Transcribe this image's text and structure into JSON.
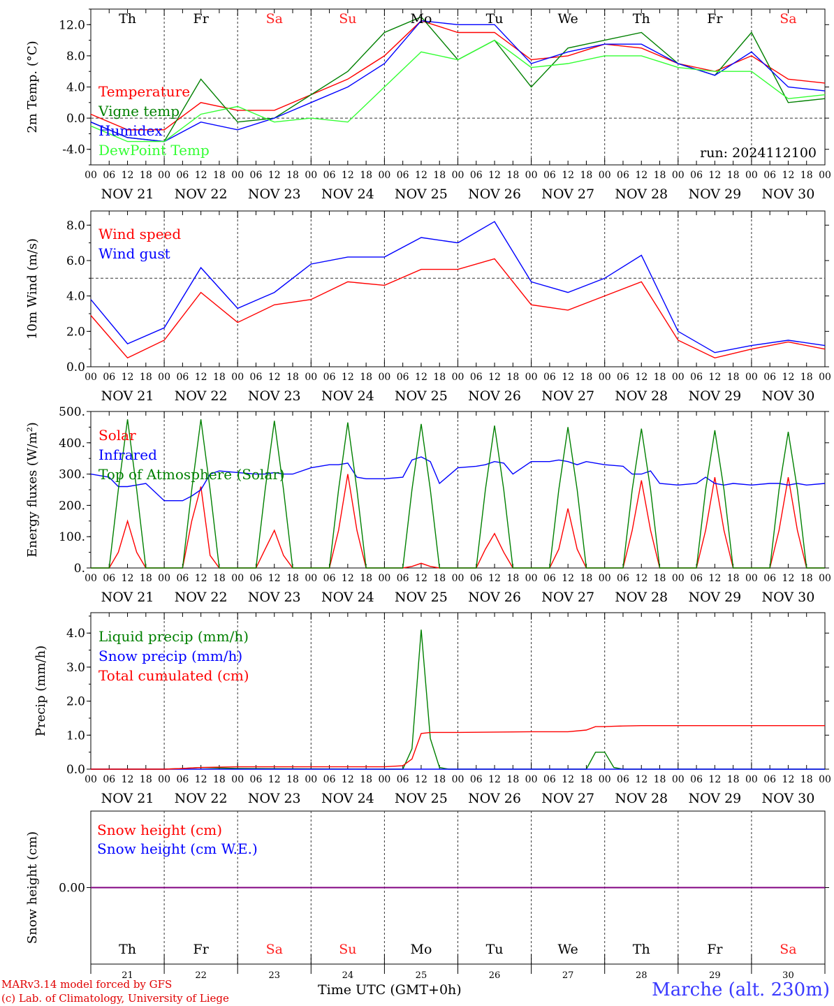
{
  "run_label": "run: 2024112100",
  "hour_ticks": [
    "00",
    "06",
    "12",
    "18"
  ],
  "final_hour_tick": "00",
  "dates": [
    "NOV 21",
    "NOV 22",
    "NOV 23",
    "NOV 24",
    "NOV 25",
    "NOV 26",
    "NOV 27",
    "NOV 28",
    "NOV 29",
    "NOV 30"
  ],
  "weekdays": [
    "Th",
    "Fr",
    "Sa",
    "Su",
    "Mo",
    "Tu",
    "We",
    "Th",
    "Fr",
    "Sa"
  ],
  "day_numbers": [
    "21",
    "22",
    "23",
    "24",
    "25",
    "26",
    "27",
    "28",
    "29",
    "30"
  ],
  "weekend_color": "#ff2020",
  "footer": {
    "credit_line1": "MARv3.14 model forced by GFS",
    "credit_line2": "(c) Lab. of Climatology, University of Liege",
    "xlabel": "Time UTC (GMT+0h)",
    "station": "Marche (alt. 230m)"
  },
  "chart_data": [
    {
      "type": "line",
      "ylabel": "2m Temp. (°C)",
      "ylim": [
        -6,
        14
      ],
      "yticks": [
        -4,
        0,
        4,
        8,
        12
      ],
      "ytick_labels": [
        "-4.0",
        "0.0",
        "4.0",
        "8.0",
        "12.0"
      ],
      "dashed_ref": 0,
      "x": [
        0,
        12,
        24,
        36,
        48,
        60,
        72,
        84,
        96,
        108,
        120,
        132,
        144,
        156,
        168,
        180,
        192,
        204,
        216,
        228,
        240
      ],
      "series": [
        {
          "name": "Temperature",
          "color": "#ff0000",
          "values": [
            0.5,
            -1.5,
            -1.5,
            2,
            1,
            1,
            3,
            5,
            8,
            12.5,
            11,
            11,
            7.5,
            8,
            9.5,
            9,
            7,
            6,
            8,
            5,
            4.5
          ]
        },
        {
          "name": "Vigne temp",
          "color": "#008000",
          "values": [
            -0.5,
            -2.5,
            -3,
            5,
            -0.5,
            0,
            3,
            6,
            11,
            13,
            7.5,
            10,
            4,
            9,
            10,
            11,
            7,
            5.5,
            11,
            2,
            2.5
          ]
        },
        {
          "name": "Humidex",
          "color": "#0000ff",
          "values": [
            -0.5,
            -2.5,
            -3,
            -0.5,
            -1.5,
            0,
            2,
            4,
            7,
            12.5,
            12,
            12,
            7,
            8.5,
            9.5,
            9.5,
            7,
            5.5,
            8.5,
            4,
            3.5
          ]
        },
        {
          "name": "DewPoint Temp",
          "color": "#33ff33",
          "values": [
            -1,
            -3,
            -3,
            0.5,
            1.5,
            -0.5,
            0,
            -0.5,
            4,
            8.5,
            7.5,
            10,
            6.5,
            7,
            8,
            8,
            6.5,
            6,
            6,
            2.5,
            3
          ]
        }
      ]
    },
    {
      "type": "line",
      "ylabel": "10m Wind (m/s)",
      "ylim": [
        0,
        8.8
      ],
      "yticks": [
        0,
        2,
        4,
        6,
        8
      ],
      "ytick_labels": [
        "0.0",
        "2.0",
        "4.0",
        "6.0",
        "8.0"
      ],
      "dashed_ref": 5,
      "x": [
        0,
        12,
        24,
        36,
        48,
        60,
        72,
        84,
        96,
        108,
        120,
        132,
        144,
        156,
        168,
        180,
        192,
        204,
        216,
        228,
        240
      ],
      "series": [
        {
          "name": "Wind speed",
          "color": "#ff0000",
          "values": [
            2.9,
            0.5,
            1.5,
            4.2,
            2.5,
            3.5,
            3.8,
            4.8,
            4.6,
            5.5,
            5.5,
            6.1,
            3.5,
            3.2,
            4,
            4.8,
            1.5,
            0.5,
            1,
            1.4,
            1
          ]
        },
        {
          "name": "Wind gust",
          "color": "#0000ff",
          "values": [
            3.8,
            1.3,
            2.2,
            5.6,
            3.3,
            4.2,
            5.8,
            6.2,
            6.2,
            7.3,
            7,
            8.2,
            4.8,
            4.2,
            5,
            6.3,
            2,
            0.8,
            1.2,
            1.5,
            1.2
          ]
        }
      ]
    },
    {
      "type": "line",
      "ylabel": "Energy fluxes (W/m²)",
      "ylim": [
        0,
        500
      ],
      "yticks": [
        0,
        100,
        200,
        300,
        400,
        500
      ],
      "ytick_labels": [
        "0.",
        "100.",
        "200.",
        "300.",
        "400.",
        "500."
      ],
      "dashed_ref": null,
      "x": [
        0,
        6,
        9,
        12,
        15,
        18,
        24,
        30,
        33,
        36,
        39,
        42,
        48,
        54,
        57,
        60,
        63,
        66,
        72,
        78,
        81,
        84,
        87,
        90,
        96,
        102,
        105,
        108,
        111,
        114,
        120,
        126,
        129,
        132,
        135,
        138,
        144,
        150,
        153,
        156,
        159,
        162,
        168,
        174,
        177,
        180,
        183,
        186,
        192,
        198,
        201,
        204,
        207,
        210,
        216,
        222,
        225,
        228,
        231,
        234,
        240
      ],
      "series": [
        {
          "name": "Solar",
          "color": "#ff0000",
          "values": [
            0,
            0,
            50,
            150,
            50,
            0,
            0,
            0,
            150,
            260,
            40,
            0,
            0,
            0,
            60,
            120,
            40,
            0,
            0,
            0,
            120,
            300,
            120,
            0,
            0,
            0,
            5,
            15,
            5,
            0,
            0,
            0,
            60,
            110,
            50,
            0,
            0,
            0,
            60,
            190,
            60,
            0,
            0,
            0,
            120,
            280,
            120,
            0,
            0,
            0,
            120,
            290,
            120,
            0,
            0,
            0,
            120,
            290,
            120,
            0,
            0
          ]
        },
        {
          "name": "Infrared",
          "color": "#0000ff",
          "values": [
            300,
            290,
            260,
            260,
            265,
            270,
            215,
            215,
            230,
            250,
            300,
            310,
            305,
            300,
            300,
            305,
            300,
            300,
            320,
            330,
            330,
            335,
            290,
            285,
            285,
            290,
            345,
            355,
            340,
            270,
            320,
            325,
            330,
            340,
            335,
            300,
            340,
            340,
            345,
            340,
            330,
            340,
            330,
            325,
            300,
            300,
            310,
            270,
            265,
            270,
            290,
            270,
            265,
            270,
            265,
            270,
            270,
            265,
            270,
            265,
            270
          ]
        },
        {
          "name": "Top of Atmosphere (Solar)",
          "color": "#008000",
          "values": [
            0,
            0,
            250,
            475,
            250,
            0,
            0,
            0,
            250,
            475,
            250,
            0,
            0,
            0,
            250,
            470,
            250,
            0,
            0,
            0,
            250,
            465,
            250,
            0,
            0,
            0,
            250,
            460,
            250,
            0,
            0,
            0,
            250,
            455,
            250,
            0,
            0,
            0,
            250,
            450,
            250,
            0,
            0,
            0,
            250,
            445,
            250,
            0,
            0,
            0,
            250,
            440,
            250,
            0,
            0,
            0,
            250,
            435,
            250,
            0,
            0
          ]
        }
      ]
    },
    {
      "type": "line",
      "ylabel": "Precip (mm/h)",
      "ylim": [
        0,
        4.6
      ],
      "yticks": [
        0,
        1,
        2,
        3,
        4
      ],
      "ytick_labels": [
        "0.0",
        "1.0",
        "2.0",
        "3.0",
        "4.0"
      ],
      "dashed_ref": null,
      "x": [
        0,
        24,
        30,
        36,
        48,
        96,
        102,
        105,
        108,
        111,
        114,
        117,
        120,
        144,
        156,
        162,
        165,
        168,
        171,
        174,
        180,
        240
      ],
      "series": [
        {
          "name": "Liquid precip (mm/h)",
          "color": "#008000",
          "values": [
            0,
            0,
            0.02,
            0.05,
            0.02,
            0,
            0,
            0.6,
            4.1,
            0.9,
            0.05,
            0,
            0,
            0,
            0,
            0,
            0.5,
            0.5,
            0.05,
            0,
            0,
            0
          ]
        },
        {
          "name": "Snow precip (mm/h)",
          "color": "#0000ff",
          "values": [
            0,
            0,
            0,
            0,
            0,
            0,
            0,
            0,
            0,
            0,
            0,
            0,
            0,
            0,
            0,
            0,
            0,
            0,
            0,
            0,
            0,
            0
          ]
        },
        {
          "name": "Total cumulated (cm)",
          "color": "#ff0000",
          "values": [
            0,
            0,
            0.02,
            0.05,
            0.07,
            0.07,
            0.1,
            0.3,
            1.05,
            1.08,
            1.08,
            1.08,
            1.08,
            1.1,
            1.1,
            1.15,
            1.25,
            1.25,
            1.26,
            1.27,
            1.28,
            1.28
          ]
        }
      ]
    },
    {
      "type": "line",
      "ylabel": "Snow height (cm)",
      "ylim": [
        -1,
        1
      ],
      "yticks": [
        0
      ],
      "ytick_labels": [
        "0.00"
      ],
      "dashed_ref": null,
      "x": [
        0,
        240
      ],
      "series": [
        {
          "name": "Snow height (cm)",
          "color": "#ff0000",
          "values": [
            0,
            0
          ]
        },
        {
          "name": "Snow height (cm W.E.)",
          "color": "#0000ff",
          "values": [
            0,
            0
          ]
        }
      ]
    }
  ]
}
